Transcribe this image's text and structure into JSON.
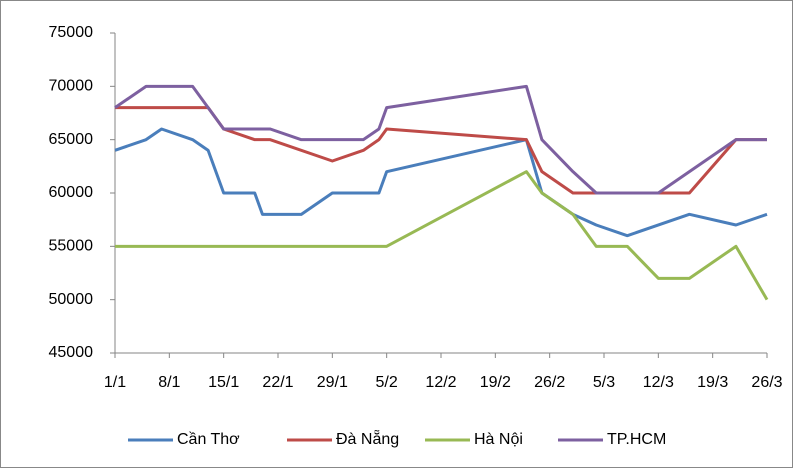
{
  "chart_data": {
    "type": "line",
    "xlim": [
      1,
      85
    ],
    "xticks": [
      {
        "value": 1,
        "label": "1/1"
      },
      {
        "value": 8,
        "label": "8/1"
      },
      {
        "value": 15,
        "label": "15/1"
      },
      {
        "value": 22,
        "label": "22/1"
      },
      {
        "value": 29,
        "label": "29/1"
      },
      {
        "value": 36,
        "label": "5/2"
      },
      {
        "value": 43,
        "label": "12/2"
      },
      {
        "value": 50,
        "label": "19/2"
      },
      {
        "value": 57,
        "label": "26/2"
      },
      {
        "value": 64,
        "label": "5/3"
      },
      {
        "value": 71,
        "label": "12/3"
      },
      {
        "value": 78,
        "label": "19/3"
      },
      {
        "value": 85,
        "label": "26/3"
      }
    ],
    "ylim": [
      45000,
      75000
    ],
    "yticks": [
      45000,
      50000,
      55000,
      60000,
      65000,
      70000,
      75000
    ],
    "grid": false,
    "legend": "bottom",
    "series": [
      {
        "name": "Cần Thơ",
        "color": "#4a7ebb",
        "x": [
          1,
          5,
          7,
          11,
          13,
          15,
          19,
          20,
          25,
          29,
          35,
          36,
          54,
          56,
          60,
          63,
          67,
          75,
          81,
          85
        ],
        "values": [
          64000,
          65000,
          66000,
          65000,
          64000,
          60000,
          60000,
          58000,
          58000,
          60000,
          60000,
          62000,
          65000,
          60000,
          58000,
          57000,
          56000,
          58000,
          57000,
          58000
        ]
      },
      {
        "name": "Đà Nẵng",
        "color": "#be4b48",
        "x": [
          1,
          13,
          15,
          19,
          21,
          29,
          33,
          35,
          36,
          54,
          56,
          60,
          75,
          81,
          85
        ],
        "values": [
          68000,
          68000,
          66000,
          65000,
          65000,
          63000,
          64000,
          65000,
          66000,
          65000,
          62000,
          60000,
          60000,
          65000,
          65000
        ]
      },
      {
        "name": "Hà Nội",
        "color": "#98b954",
        "x": [
          1,
          36,
          54,
          56,
          60,
          63,
          67,
          71,
          75,
          81,
          85
        ],
        "values": [
          55000,
          55000,
          62000,
          60000,
          58000,
          55000,
          55000,
          52000,
          52000,
          55000,
          50000
        ]
      },
      {
        "name": "TP.HCM",
        "color": "#7d60a0",
        "x": [
          1,
          5,
          11,
          15,
          21,
          25,
          33,
          35,
          36,
          54,
          56,
          60,
          63,
          71,
          81,
          85
        ],
        "values": [
          68000,
          70000,
          70000,
          66000,
          66000,
          65000,
          65000,
          66000,
          68000,
          70000,
          65000,
          62000,
          60000,
          60000,
          65000,
          65000
        ]
      }
    ]
  }
}
